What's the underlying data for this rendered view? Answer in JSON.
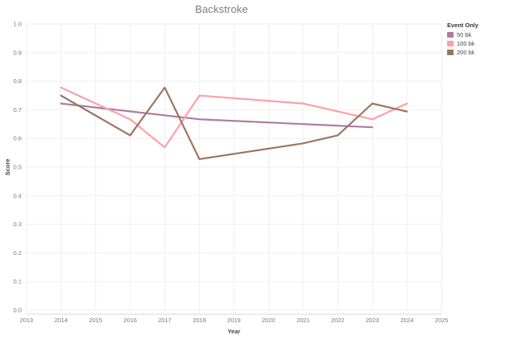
{
  "chart_data": {
    "type": "line",
    "title": "Backstroke",
    "xlabel": "Year",
    "ylabel": "Score",
    "xlim": [
      2013,
      2025
    ],
    "ylim": [
      0.0,
      1.0
    ],
    "x_ticks": [
      "2013",
      "2014",
      "2015",
      "2016",
      "2017",
      "2018",
      "2019",
      "2020",
      "2021",
      "2022",
      "2023",
      "2024",
      "2025"
    ],
    "y_ticks": [
      "0.0",
      "0.1",
      "0.2",
      "0.3",
      "0.4",
      "0.5",
      "0.6",
      "0.7",
      "0.8",
      "0.9",
      "1.0"
    ],
    "grid": true,
    "legend": {
      "title": "Event Only",
      "placement": "top-right"
    },
    "series": [
      {
        "name": "50 bk",
        "color": "#b07aa1",
        "x": [
          2014,
          2018,
          2023
        ],
        "y": [
          0.722,
          0.667,
          0.639
        ]
      },
      {
        "name": "100 bk",
        "color": "#ff9da7",
        "x": [
          2014,
          2016,
          2017,
          2018,
          2021,
          2023,
          2024
        ],
        "y": [
          0.778,
          0.667,
          0.569,
          0.75,
          0.722,
          0.667,
          0.722
        ]
      },
      {
        "name": "200 bk",
        "color": "#9c755f",
        "x": [
          2014,
          2016,
          2017,
          2018,
          2021,
          2022,
          2023,
          2024
        ],
        "y": [
          0.75,
          0.611,
          0.778,
          0.528,
          0.583,
          0.611,
          0.722,
          0.694
        ]
      }
    ]
  }
}
